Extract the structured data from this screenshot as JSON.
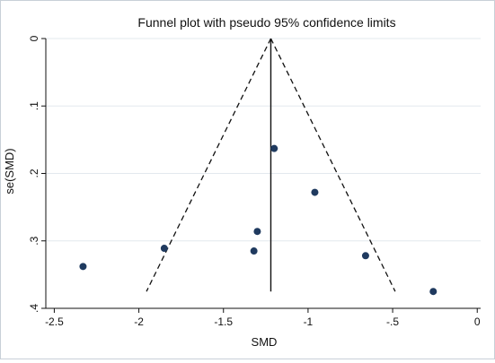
{
  "chart_data": {
    "type": "scatter",
    "title": "Funnel plot with pseudo 95% confidence limits",
    "xlabel": "SMD",
    "ylabel": "se(SMD)",
    "xlim": [
      -2.55,
      0.02
    ],
    "ylim": [
      0,
      0.4
    ],
    "y_reversed": true,
    "x_ticks": [
      -2.5,
      -2,
      -1.5,
      -1,
      -0.5,
      0
    ],
    "x_tick_labels": [
      "-2.5",
      "-2",
      "-1.5",
      "-1",
      "-.5",
      "0"
    ],
    "y_ticks": [
      0,
      0.1,
      0.2,
      0.3,
      0.4
    ],
    "y_tick_labels": [
      "0",
      ".1",
      ".2",
      ".3",
      ".4"
    ],
    "grid": "horizontal",
    "points": [
      {
        "x": -2.33,
        "y": 0.338
      },
      {
        "x": -1.85,
        "y": 0.311
      },
      {
        "x": -1.32,
        "y": 0.315
      },
      {
        "x": -1.3,
        "y": 0.286
      },
      {
        "x": -1.2,
        "y": 0.163
      },
      {
        "x": -0.96,
        "y": 0.228
      },
      {
        "x": -0.66,
        "y": 0.322
      },
      {
        "x": -0.26,
        "y": 0.375
      }
    ],
    "pooled_estimate": -1.22,
    "funnel_max_se": 0.375,
    "funnel_multiplier": 1.96,
    "colors": {
      "point": "#1f3a5f",
      "line": "#111111",
      "grid": "#e3e8ee"
    }
  }
}
